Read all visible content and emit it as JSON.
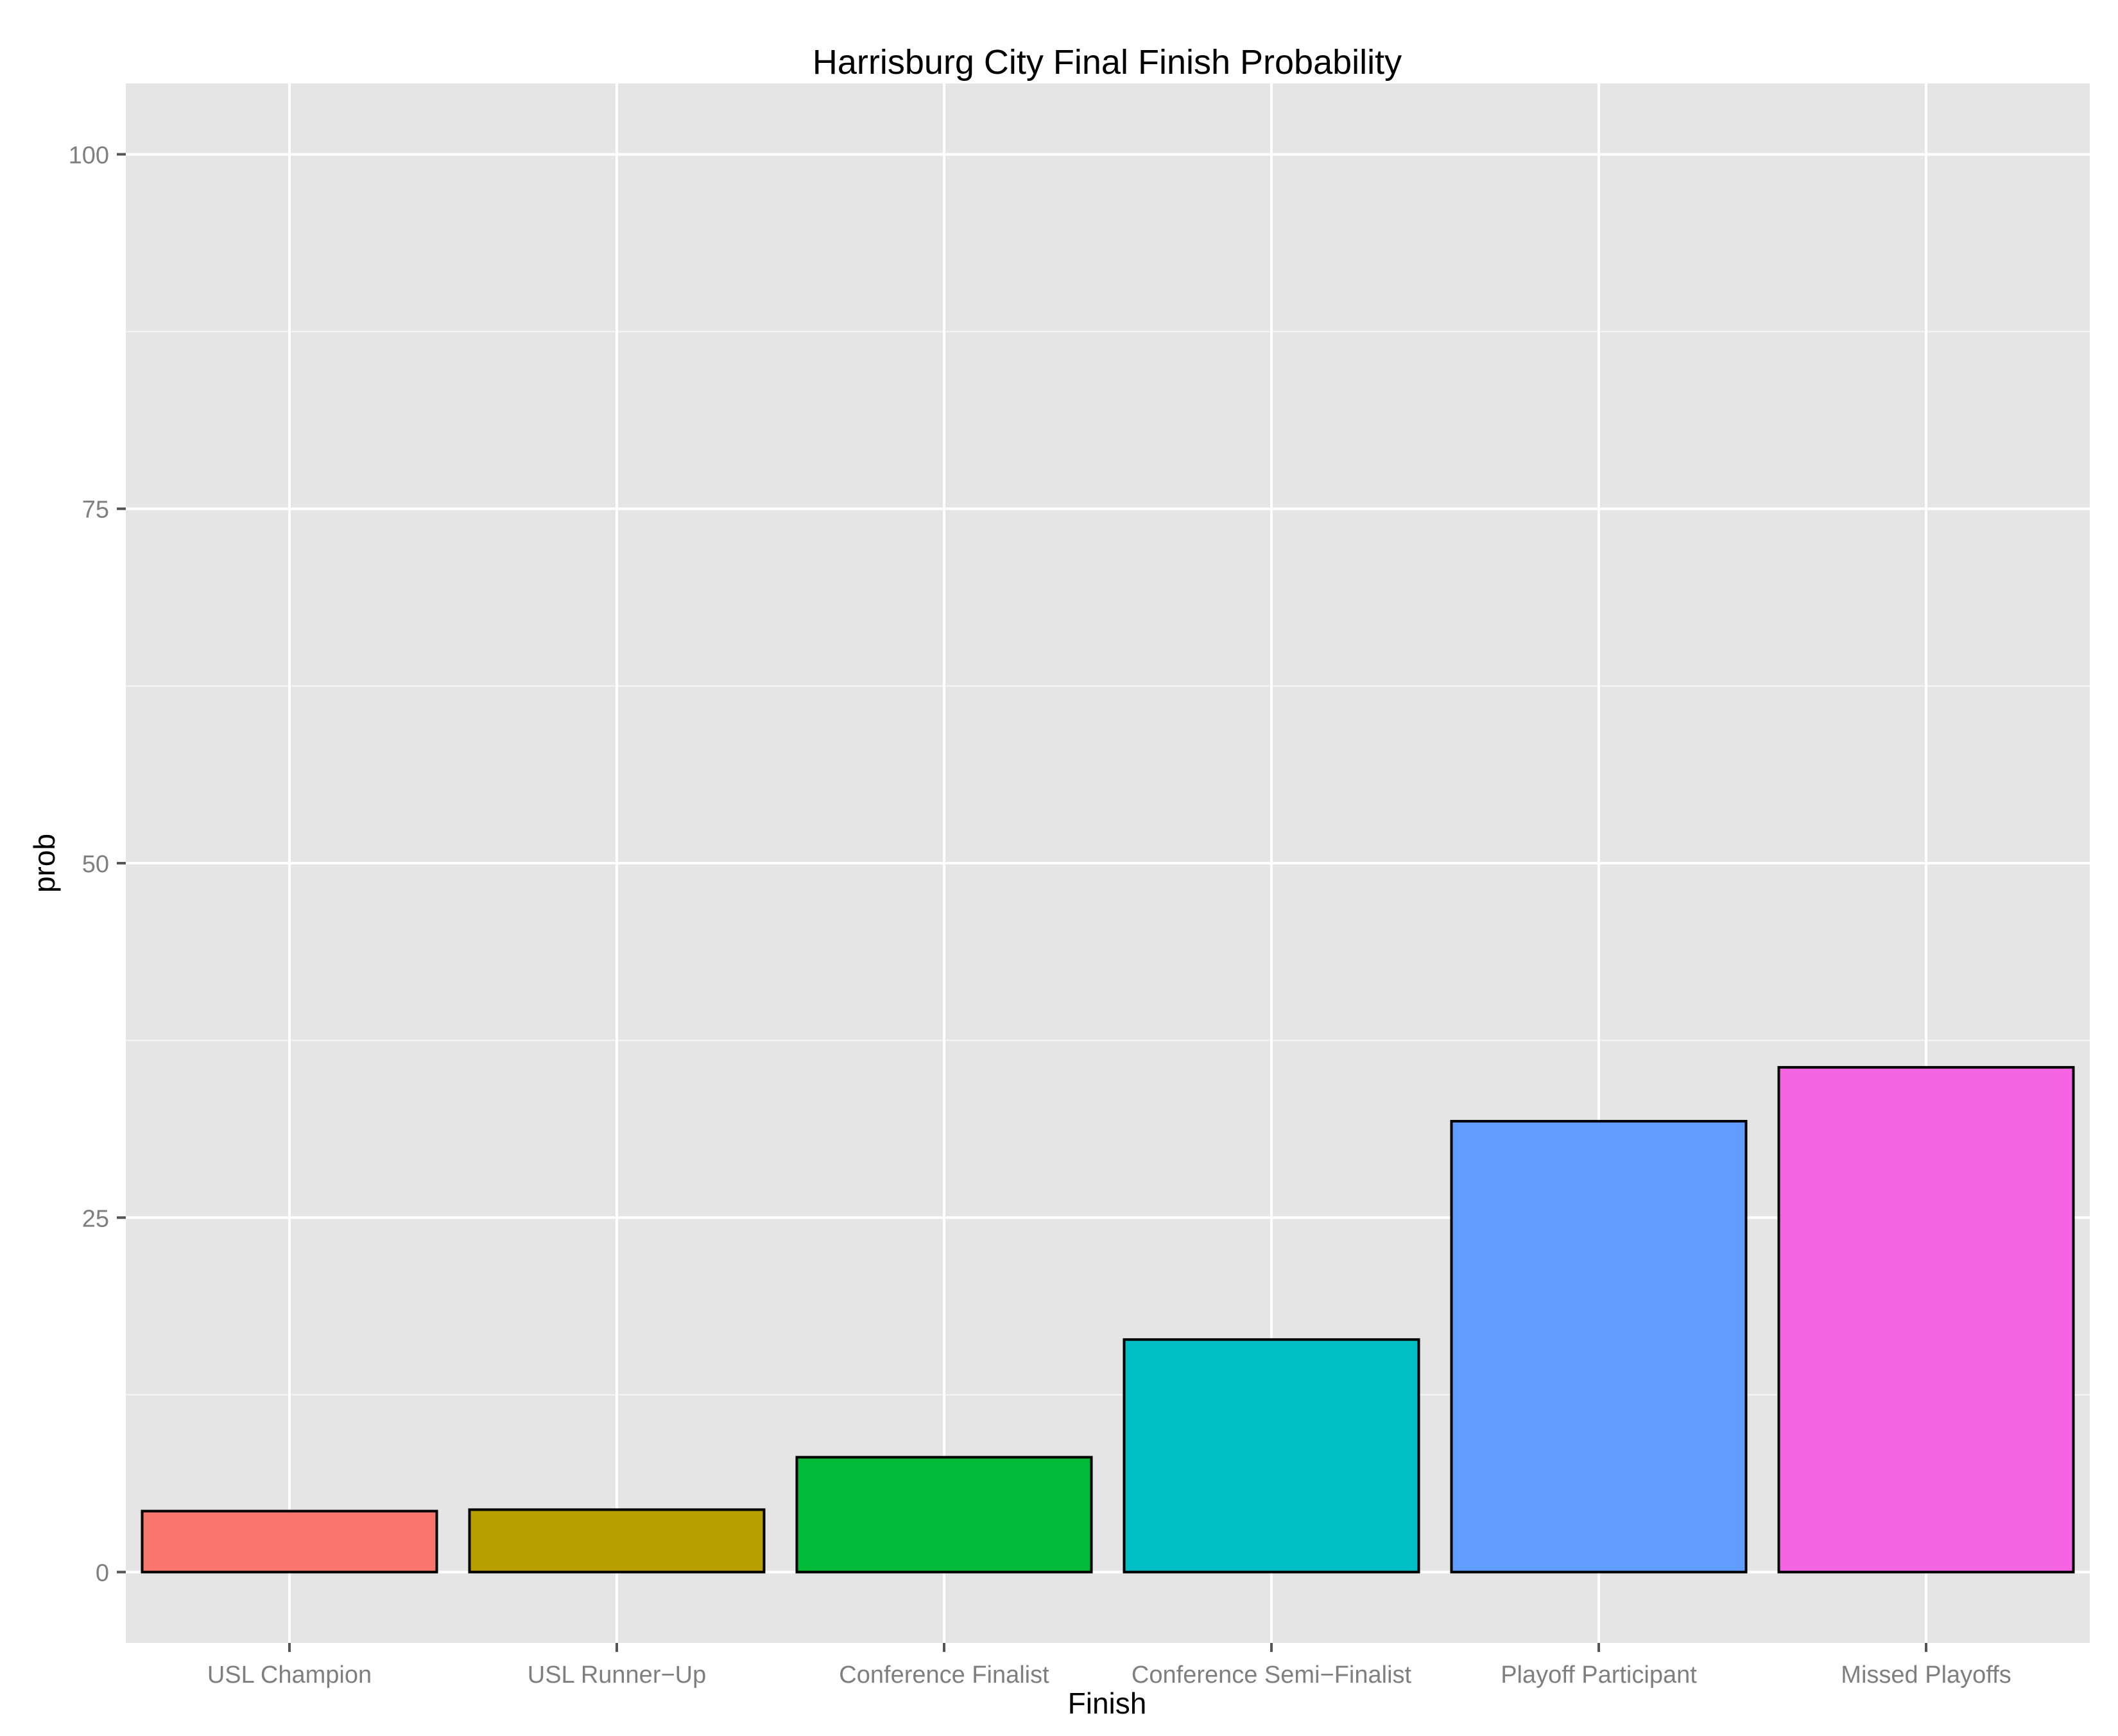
{
  "chart_data": {
    "type": "bar",
    "title": "Harrisburg City Final Finish Probability",
    "xlabel": "Finish",
    "ylabel": "prob",
    "categories": [
      "USL Champion",
      "USL Runner−Up",
      "Conference Finalist",
      "Conference Semi−Finalist",
      "Playoff Participant",
      "Missed Playoffs"
    ],
    "values": [
      4.3,
      4.4,
      8.1,
      16.4,
      31.8,
      35.6
    ],
    "colors": [
      "#F8766D",
      "#B79F00",
      "#00BA38",
      "#00BFC4",
      "#619CFF",
      "#F564E3"
    ],
    "ylim": [
      -5,
      105
    ],
    "yticks": [
      0,
      25,
      50,
      75,
      100
    ],
    "ytick_labels": [
      "0",
      "25",
      "50",
      "75",
      "100"
    ],
    "grid": true,
    "legend": "none",
    "panel_background": "#E5E5E5",
    "grid_color": "#FFFFFF",
    "bar_outline": "#000000"
  }
}
